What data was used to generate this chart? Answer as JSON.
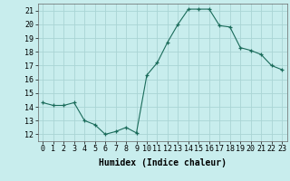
{
  "x": [
    0,
    1,
    2,
    3,
    4,
    5,
    6,
    7,
    8,
    9,
    10,
    11,
    12,
    13,
    14,
    15,
    16,
    17,
    18,
    19,
    20,
    21,
    22,
    23
  ],
  "y": [
    14.3,
    14.1,
    14.1,
    14.3,
    13.0,
    12.7,
    12.0,
    12.2,
    12.5,
    12.1,
    16.3,
    17.2,
    18.7,
    20.0,
    21.1,
    21.1,
    21.1,
    19.9,
    19.8,
    18.3,
    18.1,
    17.8,
    17.0,
    16.7
  ],
  "xlabel": "Humidex (Indice chaleur)",
  "ylabel_ticks": [
    12,
    13,
    14,
    15,
    16,
    17,
    18,
    19,
    20,
    21
  ],
  "xlim": [
    -0.5,
    23.5
  ],
  "ylim": [
    11.5,
    21.5
  ],
  "bg_color": "#c8eded",
  "grid_color": "#aad4d4",
  "line_color": "#1a6b5a",
  "marker_color": "#1a6b5a",
  "xlabel_fontsize": 7,
  "tick_fontsize": 6
}
